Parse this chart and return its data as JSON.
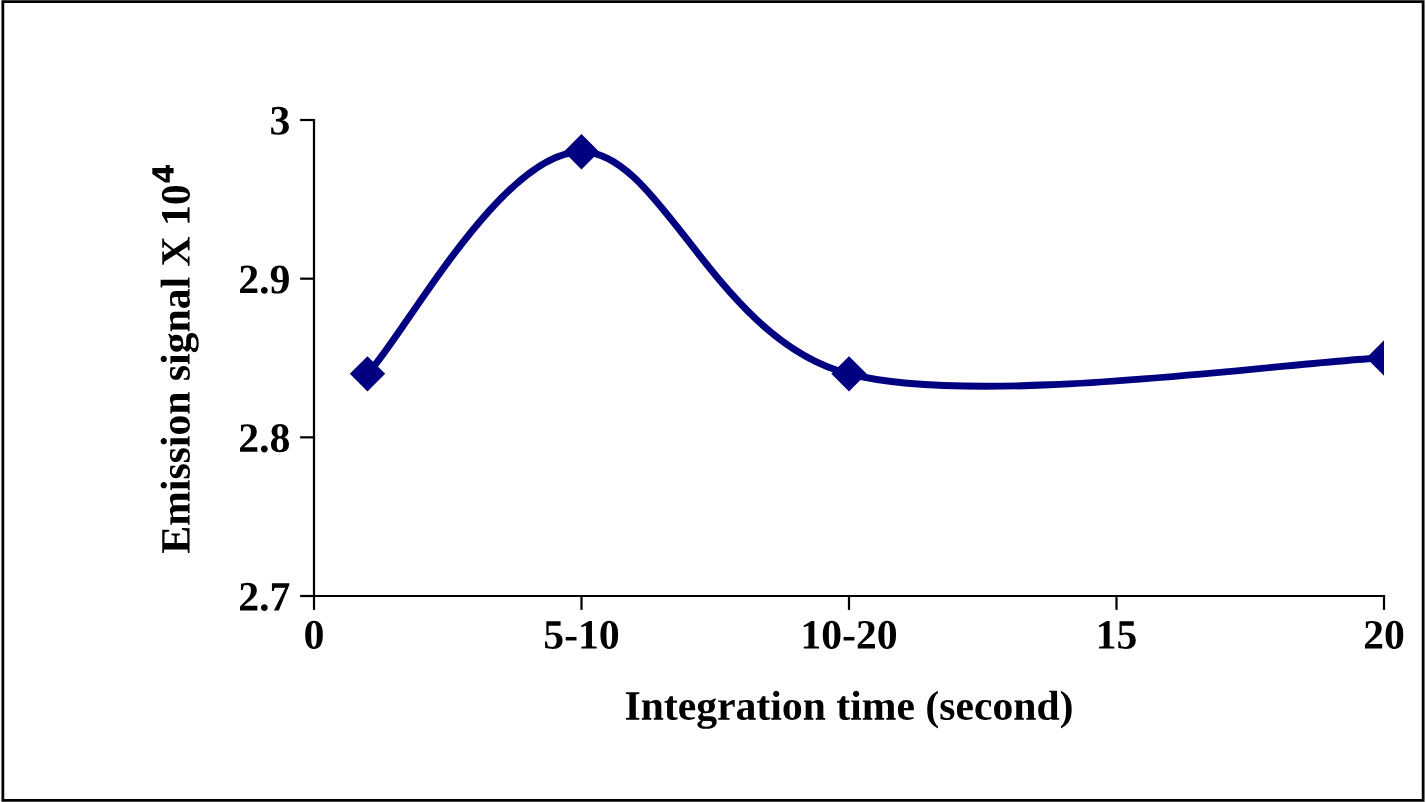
{
  "chart_data": {
    "type": "line",
    "xlabel": "Integration time (second)",
    "ylabel": "Emission signal X 10$^{4}$",
    "series": [
      {
        "color": "#000080",
        "x": [
          1,
          5,
          10,
          20
        ],
        "values": [
          2.84,
          2.98,
          2.84,
          2.85
        ]
      }
    ],
    "marker": "diamond",
    "line_style": "solid",
    "grid": false,
    "legend": false,
    "xlim": [
      0,
      20
    ],
    "xticks": [
      0,
      {
        "value": 5,
        "label": "5-10"
      },
      {
        "value": 10,
        "label": "10-20"
      },
      15,
      20
    ],
    "ylim": [
      2.7,
      3.0
    ],
    "yticks": [
      2.7,
      2.8,
      2.9,
      {
        "value": 3,
        "label": "3"
      }
    ]
  }
}
